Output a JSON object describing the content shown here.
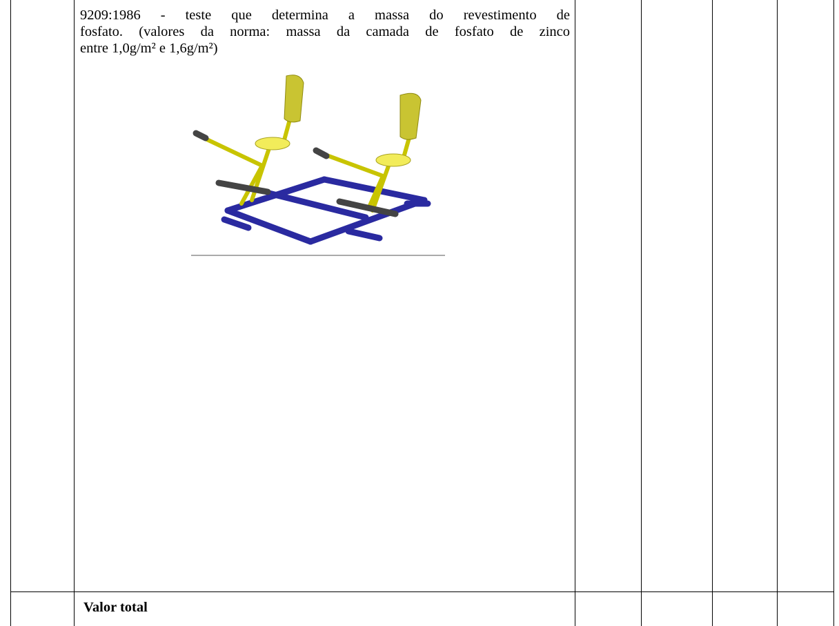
{
  "table": {
    "rows": [
      [
        null,
        {
          "lines": [
            "9209:1986 - teste que determina a massa do revestimento de",
            "fosfato. (valores da norma: massa da camada de fosfato de zinco",
            "entre 1,0g/m² e 1,6g/m²)"
          ]
        }
      ],
      [
        null,
        "Valor total"
      ]
    ]
  }
}
